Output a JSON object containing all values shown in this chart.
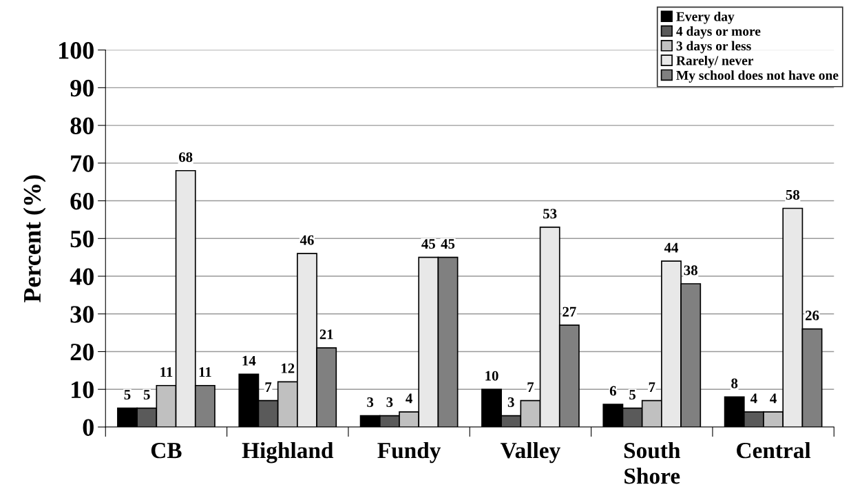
{
  "chart_data": {
    "type": "bar",
    "ylabel": "Percent (%)",
    "categories": [
      "CB",
      "Highland",
      "Fundy",
      "Valley",
      "South\nShore",
      "Central"
    ],
    "series": [
      {
        "name": "Every day",
        "color": "#000000",
        "values": [
          5,
          14,
          3,
          10,
          6,
          8
        ]
      },
      {
        "name": "4 days or more",
        "color": "#5a5a5a",
        "values": [
          5,
          7,
          3,
          3,
          5,
          4
        ]
      },
      {
        "name": "3 days or less",
        "color": "#c0c0c0",
        "values": [
          11,
          12,
          4,
          7,
          7,
          4
        ]
      },
      {
        "name": "Rarely/ never",
        "color": "#e8e8e8",
        "values": [
          68,
          46,
          45,
          53,
          44,
          58
        ]
      },
      {
        "name": "My school does not have one",
        "color": "#808080",
        "values": [
          11,
          21,
          45,
          27,
          38,
          26
        ]
      }
    ],
    "ylim": [
      0,
      100
    ],
    "yticks": [
      0,
      10,
      20,
      30,
      40,
      50,
      60,
      70,
      80,
      90,
      100
    ],
    "grid": "y",
    "legend": "top right",
    "data_labels": true
  }
}
